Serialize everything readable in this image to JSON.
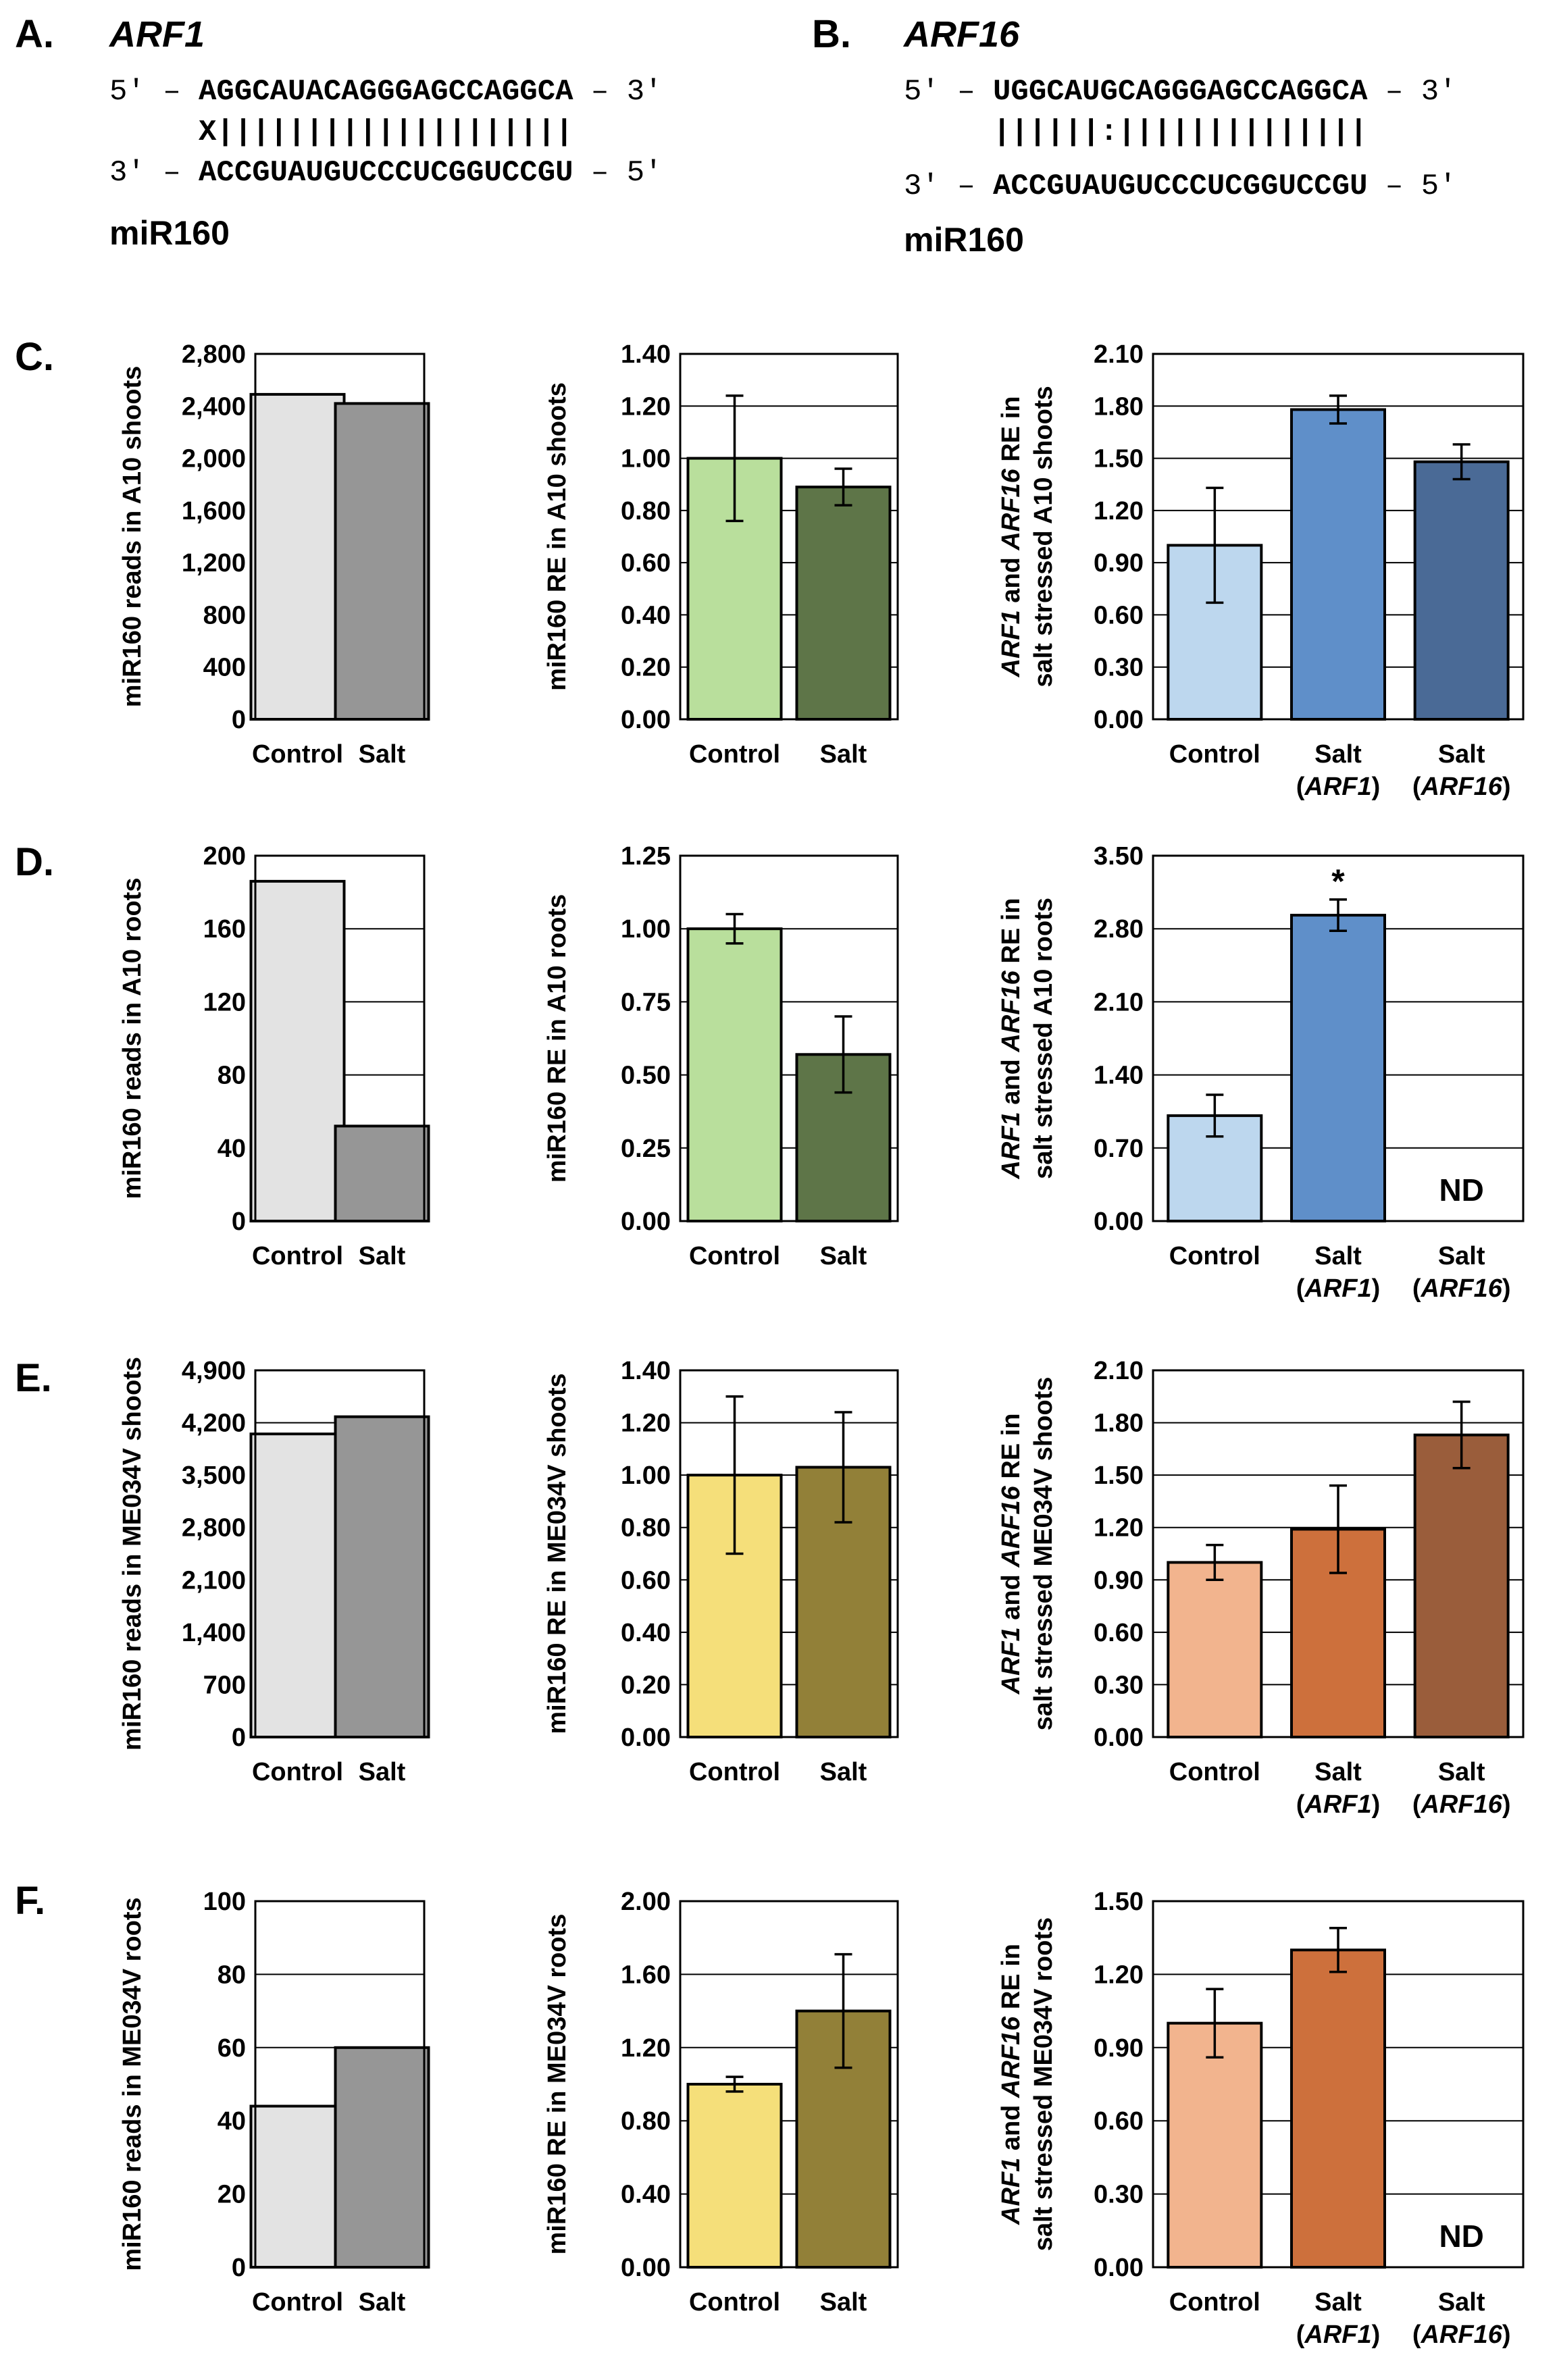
{
  "panel_a": {
    "letter": "A.",
    "gene": "ARF1",
    "top_prefix": "5′ – ",
    "top_seq": "AGGCAUACAGGGAGCCAGGCA",
    "top_suffix": " – 3′",
    "match_line": "X||||||||||||||||||||",
    "bottom_prefix": "3′ – ",
    "bottom_seq": "ACCGUAUGUCCCUCGGUCCGU",
    "bottom_suffix": " – 5′",
    "mirna": "miR160"
  },
  "panel_b": {
    "letter": "B.",
    "gene": "ARF16",
    "top_prefix": "5′ – ",
    "top_seq": "UGGCAUGCAGGGAGCCAGGCA",
    "top_suffix": " – 3′",
    "match_line": "||||||:||||||||||||||",
    "bottom_prefix": "3′ – ",
    "bottom_seq": "ACCGUAUGUCCCUCGGUCCGU",
    "bottom_suffix": " – 5′",
    "mirna": "miR160"
  },
  "row_letters": [
    "C.",
    "D.",
    "E.",
    "F."
  ],
  "colors": {
    "gray_light": "#e3e3e3",
    "gray_dark": "#969696",
    "green_light": "#b9df9c",
    "green_dark": "#5e7548",
    "blue_light": "#bdd7ee",
    "blue_mid": "#5f8fc9",
    "blue_dark": "#4a6a96",
    "yellow_light": "#f5df7a",
    "olive": "#928038",
    "peach": "#f2b48e",
    "orange": "#cd703c",
    "brown": "#9a5d3b"
  },
  "chart_data": [
    {
      "id": "C1",
      "type": "bar",
      "ylabel": [
        {
          "t": "miR160 reads in A10 shoots"
        }
      ],
      "categories": [
        [
          "Control"
        ],
        [
          "Salt"
        ]
      ],
      "values": [
        2490,
        2420
      ],
      "errors": null,
      "colors": [
        "gray_light",
        "gray_dark"
      ],
      "yticks": [
        "0",
        "400",
        "800",
        "1,200",
        "1,600",
        "2,000",
        "2,400",
        "2,800"
      ],
      "ylim": [
        0,
        2800
      ],
      "grid": true
    },
    {
      "id": "C2",
      "type": "bar",
      "ylabel": [
        {
          "t": "miR160 RE in A10 shoots"
        }
      ],
      "categories": [
        [
          "Control"
        ],
        [
          "Salt"
        ]
      ],
      "values": [
        1.0,
        0.89
      ],
      "errors": [
        0.24,
        0.07
      ],
      "colors": [
        "green_light",
        "green_dark"
      ],
      "yticks": [
        "0.00",
        "0.20",
        "0.40",
        "0.60",
        "0.80",
        "1.00",
        "1.20",
        "1.40"
      ],
      "ylim": [
        0,
        1.4
      ],
      "grid": true
    },
    {
      "id": "C3",
      "type": "bar",
      "ylabel": [
        {
          "t": "ARF1",
          "i": true
        },
        {
          "t": " and "
        },
        {
          "t": "ARF16",
          "i": true
        },
        {
          "t": " RE in"
        }
      ],
      "ylabel2": [
        {
          "t": "salt stressed A10 shoots"
        }
      ],
      "categories": [
        [
          "Control"
        ],
        [
          "Salt",
          "(ARF1)"
        ],
        [
          "Salt",
          "(ARF16)"
        ]
      ],
      "values": [
        1.0,
        1.78,
        1.48
      ],
      "errors": [
        0.33,
        0.08,
        0.1
      ],
      "colors": [
        "blue_light",
        "blue_mid",
        "blue_dark"
      ],
      "yticks": [
        "0.00",
        "0.30",
        "0.60",
        "0.90",
        "1.20",
        "1.50",
        "1.80",
        "2.10"
      ],
      "ylim": [
        0,
        2.1
      ],
      "grid": true
    },
    {
      "id": "D1",
      "type": "bar",
      "ylabel": [
        {
          "t": "miR160 reads in A10 roots"
        }
      ],
      "categories": [
        [
          "Control"
        ],
        [
          "Salt"
        ]
      ],
      "values": [
        186,
        52
      ],
      "errors": null,
      "colors": [
        "gray_light",
        "gray_dark"
      ],
      "yticks": [
        "0",
        "40",
        "80",
        "120",
        "160",
        "200"
      ],
      "ylim": [
        0,
        200
      ],
      "grid": true
    },
    {
      "id": "D2",
      "type": "bar",
      "ylabel": [
        {
          "t": "miR160 RE in A10 roots"
        }
      ],
      "categories": [
        [
          "Control"
        ],
        [
          "Salt"
        ]
      ],
      "values": [
        1.0,
        0.57
      ],
      "errors": [
        0.05,
        0.13
      ],
      "colors": [
        "green_light",
        "green_dark"
      ],
      "yticks": [
        "0.00",
        "0.25",
        "0.50",
        "0.75",
        "1.00",
        "1.25"
      ],
      "ylim": [
        0,
        1.25
      ],
      "grid": true
    },
    {
      "id": "D3",
      "type": "bar",
      "ylabel": [
        {
          "t": "ARF1",
          "i": true
        },
        {
          "t": " and "
        },
        {
          "t": "ARF16",
          "i": true
        },
        {
          "t": " RE in"
        }
      ],
      "ylabel2": [
        {
          "t": "salt stressed A10 roots"
        }
      ],
      "categories": [
        [
          "Control"
        ],
        [
          "Salt",
          "(ARF1)"
        ],
        [
          "Salt",
          "(ARF16)"
        ]
      ],
      "values": [
        1.01,
        2.93,
        null
      ],
      "errors": [
        0.2,
        0.15,
        null
      ],
      "colors": [
        "blue_light",
        "blue_mid",
        "blue_dark"
      ],
      "yticks": [
        "0.00",
        "0.70",
        "1.40",
        "2.10",
        "2.80",
        "3.50"
      ],
      "ylim": [
        0,
        3.5
      ],
      "grid": true,
      "star_index": 1,
      "star": "*",
      "nd": "ND"
    },
    {
      "id": "E1",
      "type": "bar",
      "ylabel": [
        {
          "t": "miR160 reads in ME034V shoots"
        }
      ],
      "categories": [
        [
          "Control"
        ],
        [
          "Salt"
        ]
      ],
      "values": [
        4050,
        4280
      ],
      "errors": null,
      "colors": [
        "gray_light",
        "gray_dark"
      ],
      "yticks": [
        "0",
        "700",
        "1,400",
        "2,100",
        "2,800",
        "3,500",
        "4,200",
        "4,900"
      ],
      "ylim": [
        0,
        4900
      ],
      "grid": true
    },
    {
      "id": "E2",
      "type": "bar",
      "ylabel": [
        {
          "t": "miR160 RE in ME034V shoots"
        }
      ],
      "categories": [
        [
          "Control"
        ],
        [
          "Salt"
        ]
      ],
      "values": [
        1.0,
        1.03
      ],
      "errors": [
        0.3,
        0.21
      ],
      "colors": [
        "yellow_light",
        "olive"
      ],
      "yticks": [
        "0.00",
        "0.20",
        "0.40",
        "0.60",
        "0.80",
        "1.00",
        "1.20",
        "1.40"
      ],
      "ylim": [
        0,
        1.4
      ],
      "grid": true
    },
    {
      "id": "E3",
      "type": "bar",
      "ylabel": [
        {
          "t": "ARF1",
          "i": true
        },
        {
          "t": " and "
        },
        {
          "t": "ARF16",
          "i": true
        },
        {
          "t": " RE in"
        }
      ],
      "ylabel2": [
        {
          "t": "salt stressed ME034V shoots"
        }
      ],
      "categories": [
        [
          "Control"
        ],
        [
          "Salt",
          "(ARF1)"
        ],
        [
          "Salt",
          "(ARF16)"
        ]
      ],
      "values": [
        1.0,
        1.19,
        1.73
      ],
      "errors": [
        0.1,
        0.25,
        0.19
      ],
      "colors": [
        "peach",
        "orange",
        "brown"
      ],
      "yticks": [
        "0.00",
        "0.30",
        "0.60",
        "0.90",
        "1.20",
        "1.50",
        "1.80",
        "2.10"
      ],
      "ylim": [
        0,
        2.1
      ],
      "grid": true
    },
    {
      "id": "F1",
      "type": "bar",
      "ylabel": [
        {
          "t": "miR160 reads in ME034V roots"
        }
      ],
      "categories": [
        [
          "Control"
        ],
        [
          "Salt"
        ]
      ],
      "values": [
        44,
        60
      ],
      "errors": null,
      "colors": [
        "gray_light",
        "gray_dark"
      ],
      "yticks": [
        "0",
        "20",
        "40",
        "60",
        "80",
        "100"
      ],
      "ylim": [
        0,
        100
      ],
      "grid": true
    },
    {
      "id": "F2",
      "type": "bar",
      "ylabel": [
        {
          "t": "miR160 RE in ME034V roots"
        }
      ],
      "categories": [
        [
          "Control"
        ],
        [
          "Salt"
        ]
      ],
      "values": [
        1.0,
        1.4
      ],
      "errors": [
        0.04,
        0.31
      ],
      "colors": [
        "yellow_light",
        "olive"
      ],
      "yticks": [
        "0.00",
        "0.40",
        "0.80",
        "1.20",
        "1.60",
        "2.00"
      ],
      "ylim": [
        0,
        2.0
      ],
      "grid": true
    },
    {
      "id": "F3",
      "type": "bar",
      "ylabel": [
        {
          "t": "ARF1",
          "i": true
        },
        {
          "t": " and "
        },
        {
          "t": "ARF16",
          "i": true
        },
        {
          "t": " RE in"
        }
      ],
      "ylabel2": [
        {
          "t": "salt stressed ME034V roots"
        }
      ],
      "categories": [
        [
          "Control"
        ],
        [
          "Salt",
          "(ARF1)"
        ],
        [
          "Salt",
          "(ARF16)"
        ]
      ],
      "values": [
        1.0,
        1.3,
        null
      ],
      "errors": [
        0.14,
        0.09,
        null
      ],
      "colors": [
        "peach",
        "orange",
        "brown"
      ],
      "yticks": [
        "0.00",
        "0.30",
        "0.60",
        "0.90",
        "1.20",
        "1.50"
      ],
      "ylim": [
        0,
        1.5
      ],
      "grid": true,
      "nd": "ND"
    }
  ]
}
